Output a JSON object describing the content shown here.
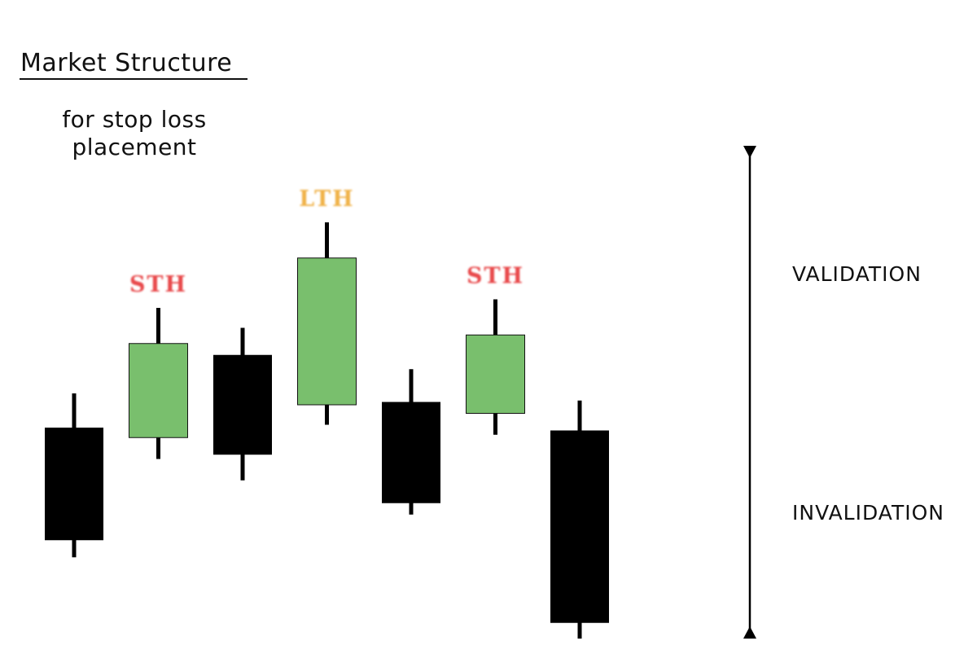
{
  "header": {
    "title": "Market Structure",
    "subtitle_line1": "for stop loss",
    "subtitle_line2": "placement"
  },
  "zones": {
    "validation_label": "VALIDATION",
    "invalidation_label": "INVALIDATION"
  },
  "colors": {
    "bull_fill": "#79bf6d",
    "bear_fill": "#000000",
    "wick": "#000000",
    "sth_label": "#e8484c",
    "lth_label": "#f0b24a",
    "arrow": "#000000"
  },
  "chart_data": {
    "type": "candlestick",
    "candles": [
      {
        "open": 34.5,
        "close": 74.0,
        "high": 86.0,
        "low": 28.5,
        "direction": "bear"
      },
      {
        "open": 70.5,
        "close": 103.5,
        "high": 116.0,
        "low": 63.0,
        "direction": "bull"
      },
      {
        "open": 64.5,
        "close": 99.5,
        "high": 109.0,
        "low": 55.5,
        "direction": "bear"
      },
      {
        "open": 82.0,
        "close": 133.5,
        "high": 146.0,
        "low": 75.0,
        "direction": "bull",
        "marker": "LTH"
      },
      {
        "open": 47.5,
        "close": 83.0,
        "high": 94.5,
        "low": 43.5,
        "direction": "bear"
      },
      {
        "open": 79.0,
        "close": 106.5,
        "high": 119.0,
        "low": 71.5,
        "direction": "bull",
        "marker": "STH"
      },
      {
        "open": 5.5,
        "close": 73.0,
        "high": 83.5,
        "low": 0.0,
        "direction": "bear"
      }
    ],
    "markers": [
      {
        "candle": 1,
        "text": "STH",
        "kind": "sth"
      },
      {
        "candle": 3,
        "text": "LTH",
        "kind": "lth"
      },
      {
        "candle": 5,
        "text": "STH",
        "kind": "sth"
      }
    ],
    "ylim": [
      0,
      178
    ]
  }
}
